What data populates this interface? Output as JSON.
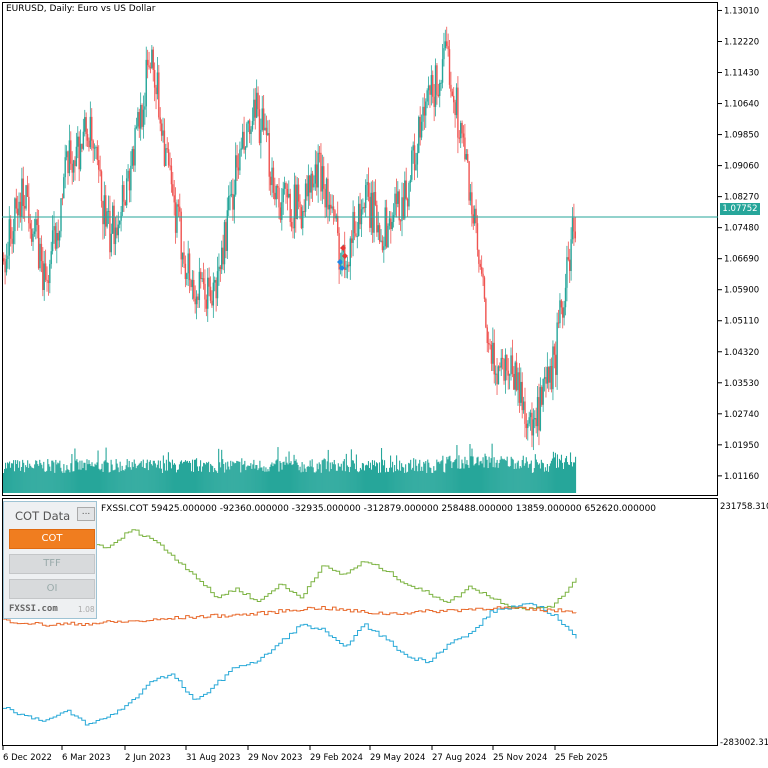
{
  "main_title": "EURUSD, Daily:  Euro vs US Dollar",
  "indicator_title": "FXSSI.COT 59425.000000 -92360.000000 -32935.000000 -312879.000000 258488.000000 13859.000000 652620.000000",
  "current_price": "1.07752",
  "price_ticks": [
    "1.13010",
    "1.12220",
    "1.11430",
    "1.10640",
    "1.09850",
    "1.09060",
    "1.08270",
    "1.07480",
    "1.06690",
    "1.05900",
    "1.05110",
    "1.04320",
    "1.03530",
    "1.02740",
    "1.01950",
    "1.01160"
  ],
  "indicator_ticks": {
    "top": "231758.310",
    "bottom": "-283002.310"
  },
  "date_ticks": [
    "6 Dec 2022",
    "6 Mar 2023",
    "2 Jun 2023",
    "31 Aug 2023",
    "29 Nov 2023",
    "29 Feb 2024",
    "29 May 2024",
    "27 Aug 2024",
    "25 Nov 2024",
    "25 Feb 2025"
  ],
  "cot_panel": {
    "title": "COT Data",
    "minimize": "...",
    "buttons": [
      "COT",
      "TFF",
      "OI"
    ],
    "active": "COT",
    "brand": "FXSSI.com",
    "version": "1.08"
  },
  "colors": {
    "bull": "#26a69a",
    "bear": "#ef5350",
    "volume": "#26a69a",
    "price_line": "#26a69a",
    "cot_green": "#7cb342",
    "cot_blue": "#29a9d8",
    "cot_orange": "#e8682a"
  },
  "chart_data": [
    {
      "type": "candlestick",
      "title": "EURUSD, Daily:  Euro vs US Dollar",
      "x": [
        "2022-12",
        "2023-01",
        "2023-02",
        "2023-03",
        "2023-04",
        "2023-05",
        "2023-06",
        "2023-07",
        "2023-08",
        "2023-09",
        "2023-10",
        "2023-11",
        "2023-12",
        "2024-01",
        "2024-02",
        "2024-03",
        "2024-04",
        "2024-05",
        "2024-06",
        "2024-07",
        "2024-08",
        "2024-09",
        "2024-10",
        "2024-11",
        "2024-12",
        "2025-01",
        "2025-02",
        "2025-03"
      ],
      "close": [
        1.067,
        1.085,
        1.06,
        1.09,
        1.1,
        1.072,
        1.09,
        1.12,
        1.08,
        1.058,
        1.058,
        1.09,
        1.104,
        1.082,
        1.08,
        1.09,
        1.066,
        1.082,
        1.074,
        1.084,
        1.106,
        1.118,
        1.086,
        1.04,
        1.04,
        1.022,
        1.04,
        1.078
      ],
      "ylim": [
        1.008,
        1.132
      ]
    },
    {
      "type": "line",
      "title": "FXSSI.COT",
      "values_printed": [
        59425,
        -92360,
        -32935,
        -312879,
        258488,
        13859,
        652620
      ],
      "series": [
        {
          "color": "green",
          "values": [
            230000,
            200000,
            185000,
            215000,
            150000,
            140000,
            180000,
            160000,
            120000,
            80000,
            30000,
            50000,
            20000,
            60000,
            30000,
            100000,
            80000,
            110000,
            90000,
            60000,
            40000,
            20000,
            55000,
            30000,
            10000,
            5000,
            15000,
            75000
          ]
        },
        {
          "color": "blue",
          "values": [
            -210000,
            -230000,
            -240000,
            -220000,
            -250000,
            -230000,
            -200000,
            -150000,
            -140000,
            -200000,
            -160000,
            -120000,
            -110000,
            -70000,
            -30000,
            -40000,
            -80000,
            -30000,
            -60000,
            -100000,
            -110000,
            -70000,
            -50000,
            0,
            10000,
            15000,
            -10000,
            -60000
          ]
        },
        {
          "color": "orange",
          "values": [
            -20000,
            -25000,
            -30000,
            -28000,
            -27000,
            -24000,
            -22000,
            -20000,
            -15000,
            -12000,
            -10000,
            -8000,
            -5000,
            0,
            5000,
            8000,
            3000,
            -2000,
            -5000,
            -3000,
            0,
            2000,
            5000,
            8000,
            6000,
            4000,
            2000,
            0
          ]
        }
      ],
      "ylim": [
        -283002.31,
        231758.31
      ]
    }
  ]
}
